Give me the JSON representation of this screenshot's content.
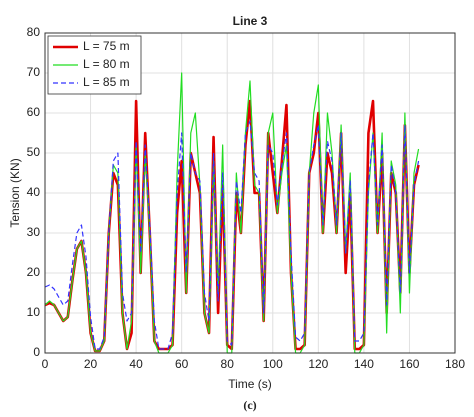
{
  "chart_data": {
    "type": "line",
    "title": "Line 3",
    "xlabel": "Time (s)",
    "ylabel": "Tension (KN)",
    "caption": "(c)",
    "x": [
      0,
      2,
      4,
      6,
      8,
      10,
      12,
      14,
      16,
      18,
      20,
      22,
      24,
      26,
      28,
      30,
      32,
      34,
      36,
      38,
      40,
      42,
      44,
      46,
      48,
      50,
      52,
      54,
      56,
      58,
      60,
      62,
      64,
      66,
      68,
      70,
      72,
      74,
      76,
      78,
      80,
      82,
      84,
      86,
      88,
      90,
      92,
      94,
      96,
      98,
      100,
      102,
      104,
      106,
      108,
      110,
      112,
      114,
      116,
      118,
      120,
      122,
      124,
      126,
      128,
      130,
      132,
      134,
      136,
      138,
      140,
      142,
      144,
      146,
      148,
      150,
      152,
      154,
      156,
      158,
      160,
      162,
      164
    ],
    "series": [
      {
        "name": "L = 75 m",
        "color": "#e00000",
        "dash": false,
        "values": [
          12,
          12.5,
          12,
          10,
          8,
          9,
          18,
          26,
          28,
          20,
          5,
          0.5,
          0.5,
          3,
          30,
          45,
          42,
          10,
          1,
          5,
          63,
          20,
          55,
          30,
          3,
          1,
          1,
          1,
          2,
          35,
          48,
          15,
          50,
          45,
          40,
          10,
          5,
          54,
          10,
          42,
          2,
          1,
          40,
          30,
          52,
          63,
          40,
          40,
          8,
          55,
          45,
          35,
          48,
          62,
          20,
          1,
          1,
          2,
          45,
          50,
          60,
          30,
          50,
          45,
          30,
          55,
          20,
          40,
          1,
          1,
          2,
          55,
          63,
          30,
          50,
          10,
          45,
          40,
          15,
          57,
          20,
          42,
          47
        ]
      },
      {
        "name": "L = 80 m",
        "color": "#22dd22",
        "dash": false,
        "values": [
          12,
          13,
          12,
          10,
          8,
          9,
          18,
          26,
          28,
          20,
          5,
          0.5,
          0.5,
          3,
          30,
          47,
          45,
          10,
          1,
          8,
          52,
          20,
          50,
          30,
          3,
          0,
          0,
          0,
          2,
          45,
          70,
          15,
          55,
          60,
          42,
          10,
          5,
          48,
          15,
          52,
          0,
          0,
          45,
          30,
          55,
          68,
          42,
          40,
          8,
          55,
          60,
          35,
          45,
          52,
          20,
          0,
          0,
          2,
          45,
          60,
          67,
          30,
          60,
          50,
          30,
          57,
          25,
          45,
          0,
          0,
          2,
          40,
          55,
          30,
          55,
          5,
          48,
          42,
          10,
          60,
          15,
          45,
          51
        ]
      },
      {
        "name": "L = 85 m",
        "color": "#3333ff",
        "dash": true,
        "values": [
          16.5,
          17,
          16,
          14,
          12,
          13,
          22,
          30,
          32,
          24,
          9,
          1,
          1,
          4,
          30,
          48,
          50,
          15,
          8,
          10,
          53,
          25,
          52,
          32,
          8,
          1,
          1,
          1,
          5,
          40,
          55,
          20,
          50,
          45,
          43,
          15,
          8,
          50,
          13,
          45,
          3,
          2,
          43,
          35,
          55,
          58,
          45,
          43,
          10,
          52,
          50,
          37,
          47,
          55,
          25,
          4,
          3,
          5,
          45,
          52,
          57,
          32,
          53,
          48,
          32,
          55,
          25,
          43,
          3,
          3,
          5,
          42,
          55,
          32,
          52,
          12,
          47,
          40,
          15,
          57,
          20,
          42,
          48
        ]
      }
    ],
    "xlim": [
      0,
      180
    ],
    "xticks": [
      0,
      20,
      40,
      60,
      80,
      100,
      120,
      140,
      160,
      180
    ],
    "ylim": [
      0,
      80
    ],
    "yticks": [
      0,
      10,
      20,
      30,
      40,
      50,
      60,
      70,
      80
    ],
    "grid": true,
    "legend": "upper-left"
  }
}
